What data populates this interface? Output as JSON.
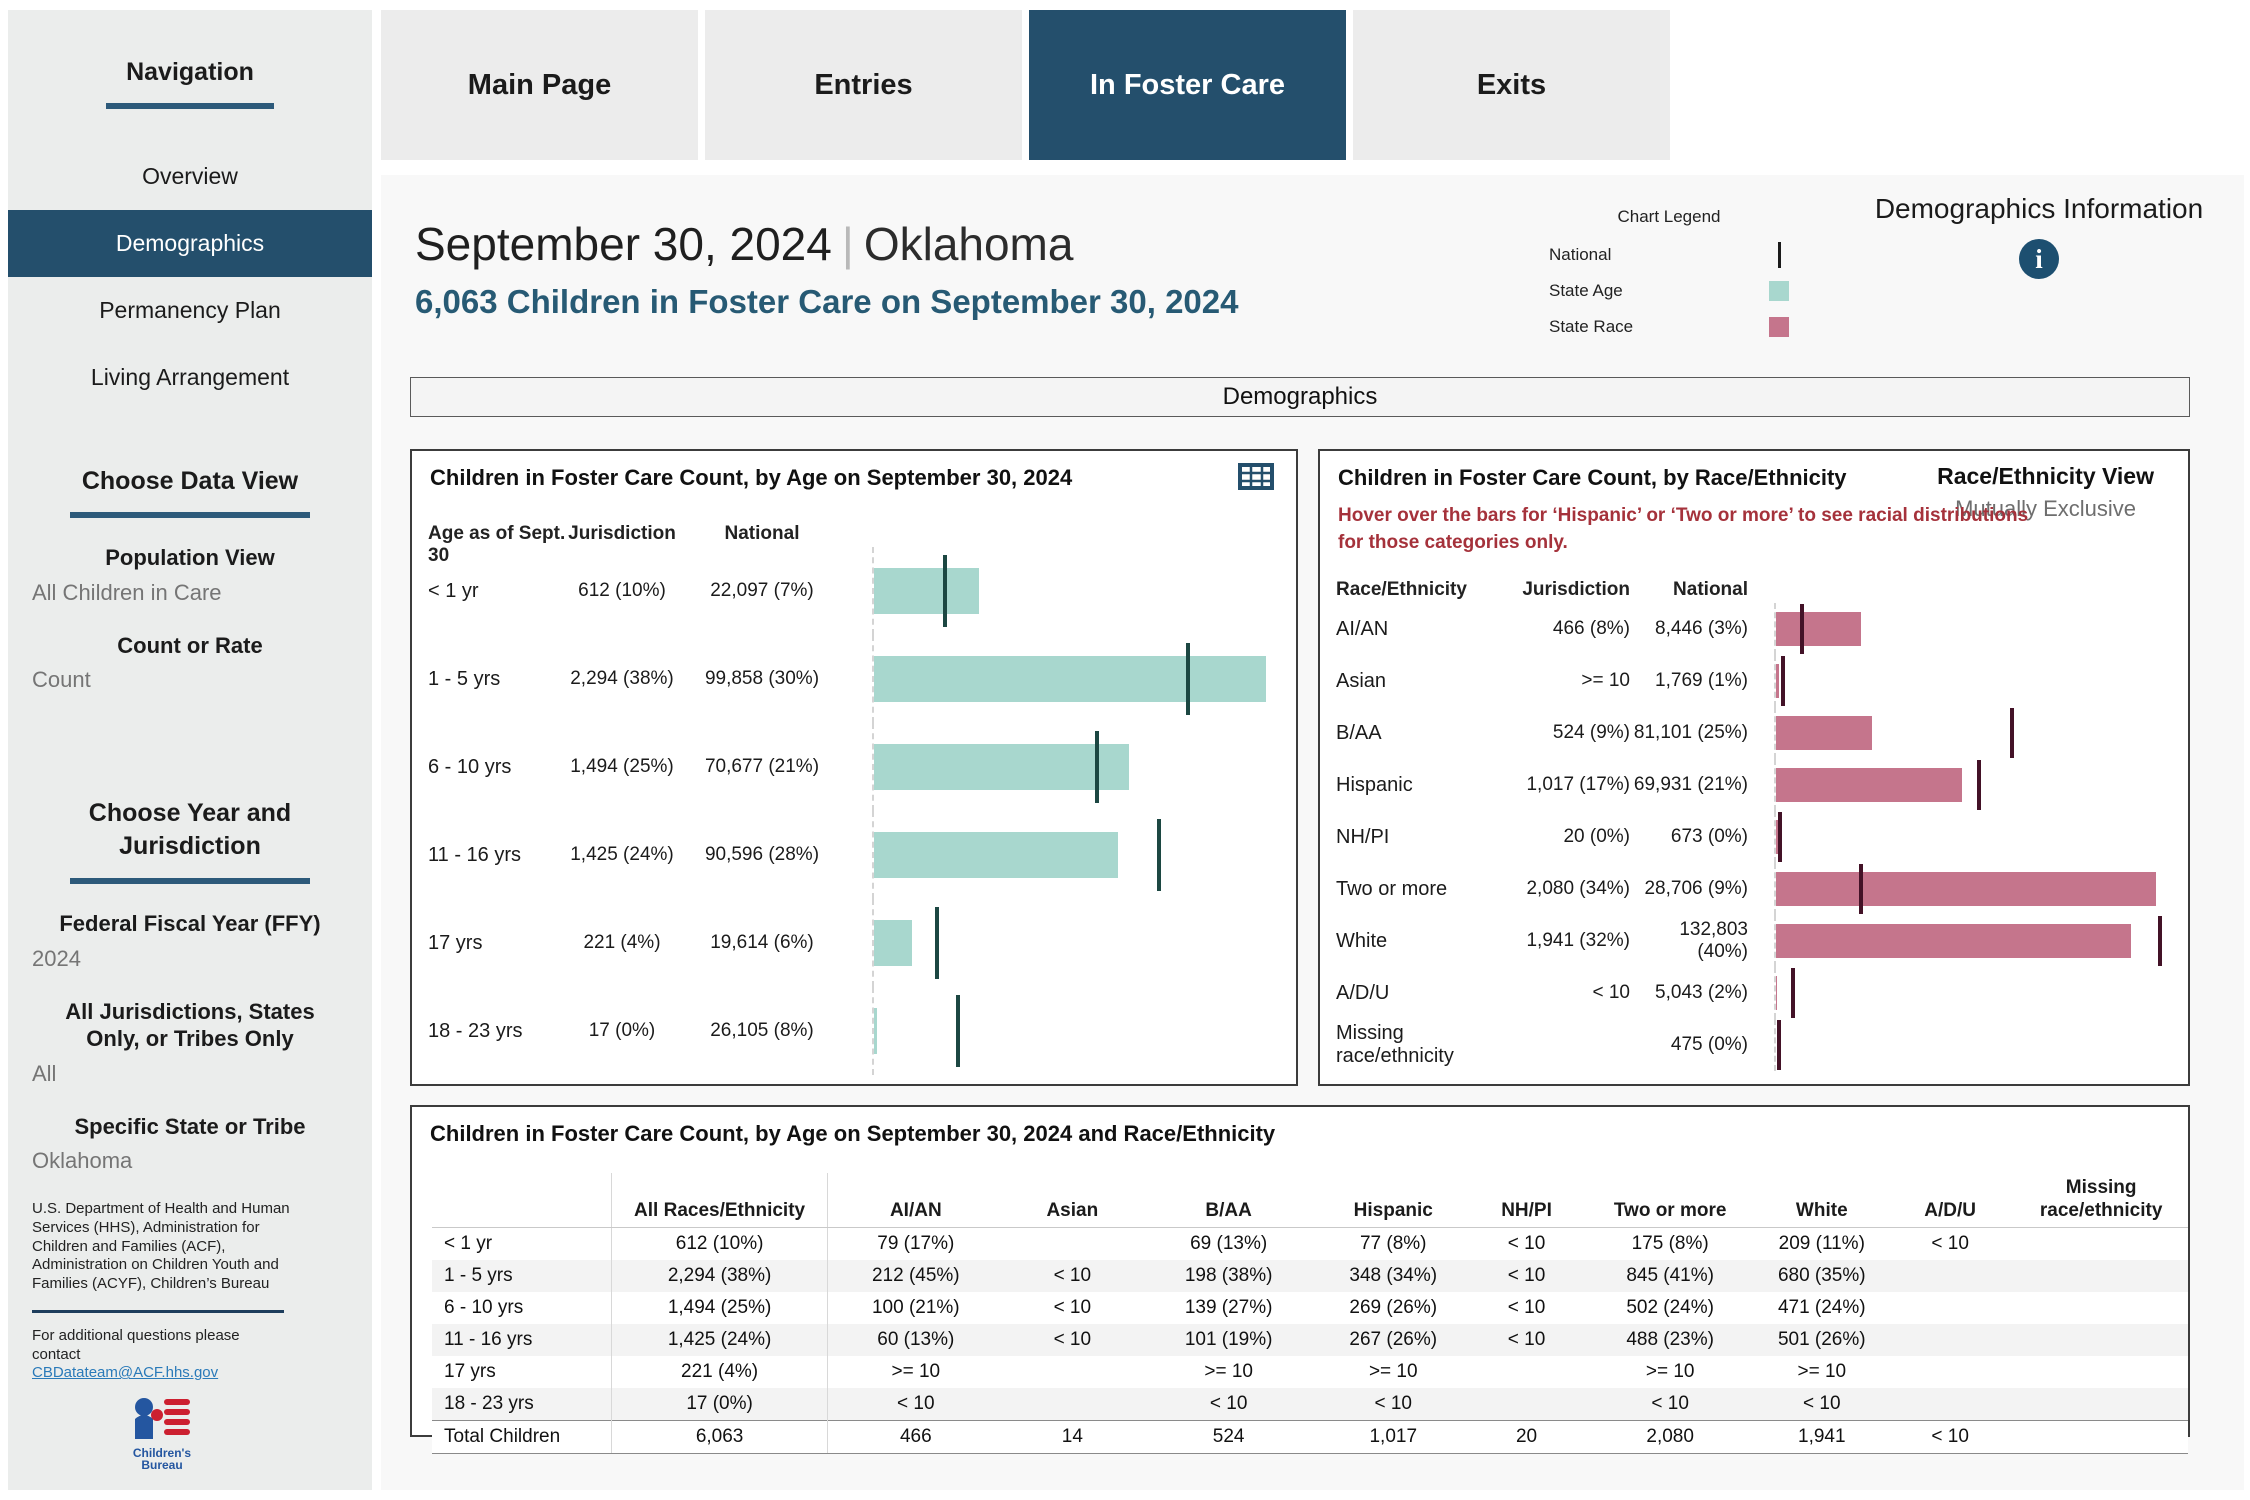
{
  "colors": {
    "navy": "#244f6c",
    "subtitle_navy": "#275a74",
    "state_age_bar": "#a8d7ce",
    "age_national_tick": "#1c4742",
    "state_race_bar": "#c5758c",
    "race_national_tick": "#431227",
    "note_red": "#a5323b",
    "link_blue": "#2a7ab9",
    "sidebar_bg": "#ebedec"
  },
  "tabs": [
    {
      "label": "Main Page",
      "active": false
    },
    {
      "label": "Entries",
      "active": false
    },
    {
      "label": "In Foster Care",
      "active": true
    },
    {
      "label": "Exits",
      "active": false
    }
  ],
  "sidebar": {
    "nav_title": "Navigation",
    "nav_items": [
      {
        "label": "Overview",
        "active": false
      },
      {
        "label": "Demographics",
        "active": true
      },
      {
        "label": "Permanency Plan",
        "active": false
      },
      {
        "label": "Living Arrangement",
        "active": false
      }
    ],
    "data_view_title": "Choose Data View",
    "population_view_label": "Population View",
    "population_view_value": "All Children in Care",
    "count_or_rate_label": "Count or Rate",
    "count_or_rate_value": "Count",
    "year_title": "Choose Year and Jurisdiction",
    "ffy_label": "Federal Fiscal Year (FFY)",
    "ffy_value": "2024",
    "jurisdiction_label": "All Jurisdictions, States Only, or Tribes Only",
    "jurisdiction_value": "All",
    "state_label": "Specific State or Tribe",
    "state_value": "Oklahoma",
    "footer_org": "U.S. Department of Health and Human Services (HHS), Administration for Children and Families (ACF), Administration on Children Youth and Families (ACYF), Children’s Bureau",
    "footer_contact": "For additional questions please contact",
    "footer_email": "CBDatateam@ACF.hhs.gov",
    "logo_line1": "Children's",
    "logo_line2": "Bureau"
  },
  "header": {
    "date_title": "September 30, 2024",
    "separator": "|",
    "state": "Oklahoma",
    "subtitle": "6,063 Children in Foster Care on September 30, 2024",
    "legend": {
      "title": "Chart Legend",
      "items": [
        {
          "label": "National",
          "swatch": "line",
          "color": "#1b1b1b"
        },
        {
          "label": "State Age",
          "swatch": "box",
          "color": "#a8d7ce"
        },
        {
          "label": "State Race",
          "swatch": "box",
          "color": "#c5758c"
        }
      ]
    },
    "info_title": "Demographics Information",
    "info_icon": "i"
  },
  "section_title": "Demographics",
  "chart_data": [
    {
      "id": "age",
      "type": "bar",
      "title": "Children in Foster Care Count, by Age on September 30, 2024",
      "columns": [
        "Age as of Sept. 30",
        "Jurisdiction",
        "National"
      ],
      "legend_note": "teal bars = state counts, dark vertical ticks = national counts",
      "axis": {
        "state_max": 2433,
        "national_max": 133150,
        "grid": "zero-dashed-line"
      },
      "rows": [
        {
          "label": "< 1 yr",
          "jurisdiction": "612 (10%)",
          "national": "22,097 (7%)",
          "state_count": 612,
          "national_count": 22097
        },
        {
          "label": "1 - 5 yrs",
          "jurisdiction": "2,294 (38%)",
          "national": "99,858 (30%)",
          "state_count": 2294,
          "national_count": 99858
        },
        {
          "label": "6 - 10 yrs",
          "jurisdiction": "1,494 (25%)",
          "national": "70,677 (21%)",
          "state_count": 1494,
          "national_count": 70677
        },
        {
          "label": "11 - 16 yrs",
          "jurisdiction": "1,425 (24%)",
          "national": "90,596 (28%)",
          "state_count": 1425,
          "national_count": 90596
        },
        {
          "label": "17 yrs",
          "jurisdiction": "221 (4%)",
          "national": "19,614 (6%)",
          "state_count": 221,
          "national_count": 19614
        },
        {
          "label": "18 - 23 yrs",
          "jurisdiction": "17 (0%)",
          "national": "26,105 (8%)",
          "state_count": 17,
          "national_count": 26105
        }
      ]
    },
    {
      "id": "race",
      "type": "bar",
      "title": "Children in Foster Care Count, by Race/Ethnicity",
      "view_label": "Race/Ethnicity View",
      "view_value": "Mutually Exclusive",
      "note": "Hover over the bars for ‘Hispanic’ or ‘Two or more’ to see racial distributions for those categories only.",
      "columns": [
        "Race/Ethnicity",
        "Jurisdiction",
        "National"
      ],
      "axis": {
        "state_max": 2220,
        "national_max": 141000,
        "grid": "zero-dashed-line"
      },
      "rows": [
        {
          "label": "AI/AN",
          "jurisdiction": "466 (8%)",
          "national": "8,446 (3%)",
          "state_count": 466,
          "national_count": 8446
        },
        {
          "label": "Asian",
          "jurisdiction": ">= 10",
          "national": "1,769 (1%)",
          "state_count": 14,
          "national_count": 1769
        },
        {
          "label": "B/AA",
          "jurisdiction": "524 (9%)",
          "national": "81,101 (25%)",
          "state_count": 524,
          "national_count": 81101
        },
        {
          "label": "Hispanic",
          "jurisdiction": "1,017 (17%)",
          "national": "69,931 (21%)",
          "state_count": 1017,
          "national_count": 69931
        },
        {
          "label": "NH/PI",
          "jurisdiction": "20 (0%)",
          "national": "673 (0%)",
          "state_count": 20,
          "national_count": 673
        },
        {
          "label": "Two or more",
          "jurisdiction": "2,080 (34%)",
          "national": "28,706 (9%)",
          "state_count": 2080,
          "national_count": 28706
        },
        {
          "label": "White",
          "jurisdiction": "1,941 (32%)",
          "national": "132,803 (40%)",
          "state_count": 1941,
          "national_count": 132803
        },
        {
          "label": "A/D/U",
          "jurisdiction": "< 10",
          "national": "5,043 (2%)",
          "state_count": 5,
          "national_count": 5043
        },
        {
          "label": "Missing race/ethnicity",
          "jurisdiction": "",
          "national": "475 (0%)",
          "state_count": 0,
          "national_count": 475
        }
      ]
    },
    {
      "id": "age_race_table",
      "type": "table",
      "title": "Children in Foster Care Count, by Age on September 30, 2024 and Race/Ethnicity",
      "col_headers": [
        "",
        "All Races/Ethnicity",
        "AI/AN",
        "Asian",
        "B/AA",
        "Hispanic",
        "NH/PI",
        "Two or more",
        "White",
        "A/D/U",
        "Missing race/ethnicity"
      ],
      "rows": [
        [
          "< 1 yr",
          "612 (10%)",
          "79 (17%)",
          "",
          "69 (13%)",
          "77 (8%)",
          "< 10",
          "175 (8%)",
          "209 (11%)",
          "< 10",
          ""
        ],
        [
          "1 - 5 yrs",
          "2,294 (38%)",
          "212 (45%)",
          "< 10",
          "198 (38%)",
          "348 (34%)",
          "< 10",
          "845 (41%)",
          "680 (35%)",
          "",
          ""
        ],
        [
          "6 - 10 yrs",
          "1,494 (25%)",
          "100 (21%)",
          "< 10",
          "139 (27%)",
          "269 (26%)",
          "< 10",
          "502 (24%)",
          "471 (24%)",
          "",
          ""
        ],
        [
          "11 - 16 yrs",
          "1,425 (24%)",
          "60 (13%)",
          "< 10",
          "101 (19%)",
          "267 (26%)",
          "< 10",
          "488 (23%)",
          "501 (26%)",
          "",
          ""
        ],
        [
          "17 yrs",
          "221 (4%)",
          ">= 10",
          "",
          ">= 10",
          ">= 10",
          "",
          ">= 10",
          ">= 10",
          "",
          ""
        ],
        [
          "18 - 23 yrs",
          "17 (0%)",
          "< 10",
          "",
          "< 10",
          "< 10",
          "",
          "< 10",
          "< 10",
          "",
          ""
        ],
        [
          "Total Children",
          "6,063",
          "466",
          "14",
          "524",
          "1,017",
          "20",
          "2,080",
          "1,941",
          "< 10",
          ""
        ]
      ]
    }
  ]
}
